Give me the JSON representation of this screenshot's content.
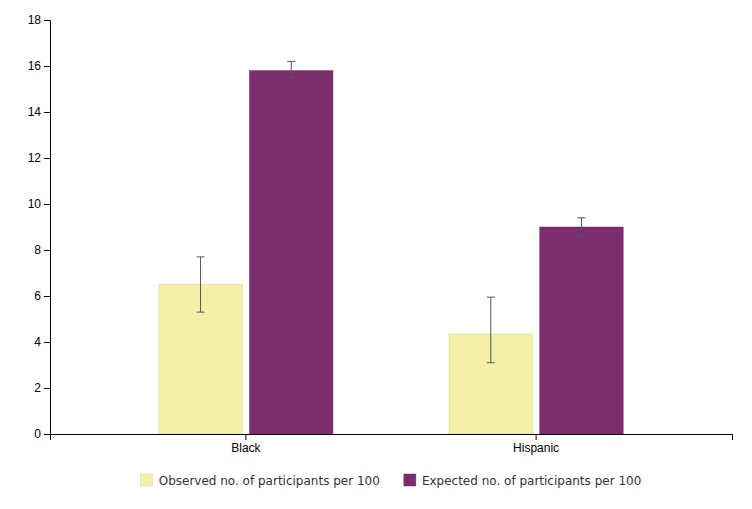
{
  "chart_data": {
    "type": "bar",
    "categories": [
      "Black",
      "Hispanic"
    ],
    "series": [
      {
        "name": "Observed no. of participants per 100",
        "color": "#F5F0A8",
        "values": [
          6.5,
          4.35
        ],
        "error_low": [
          1.2,
          1.25
        ],
        "error_high": [
          1.2,
          1.6
        ]
      },
      {
        "name": "Expected no. of participants per 100",
        "color": "#7B2D6E",
        "values": [
          15.8,
          9.0
        ],
        "error_low": [
          0.3,
          0.4
        ],
        "error_high": [
          0.4,
          0.4
        ]
      }
    ],
    "ylim": [
      0,
      18
    ],
    "yticks": [
      0,
      2,
      4,
      6,
      8,
      10,
      12,
      14,
      16,
      18
    ],
    "grid": false,
    "legend": "bottom"
  }
}
